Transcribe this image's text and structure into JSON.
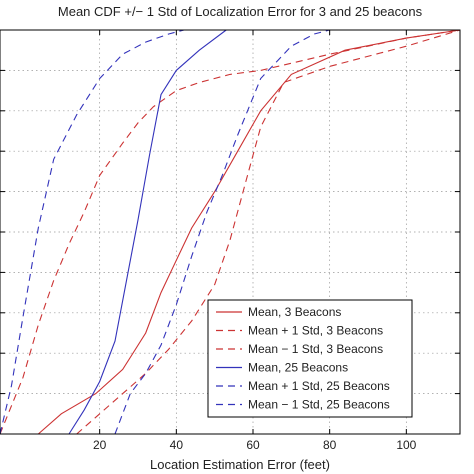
{
  "chart_data": {
    "type": "line",
    "title": "Mean CDF +/− 1 Std of Localization Error for 3 and 25 beacons",
    "xlabel": "Location Estimation Error (feet)",
    "ylabel": "",
    "xlim": [
      -6,
      114
    ],
    "ylim": [
      0,
      1
    ],
    "xticks": [
      20,
      40,
      60,
      80,
      100
    ],
    "yticks": [
      0,
      0.1,
      0.2,
      0.3,
      0.4,
      0.5,
      0.6,
      0.7,
      0.8,
      0.9,
      1.0
    ],
    "grid": true,
    "legend_position": "bottom-right",
    "series": [
      {
        "name": "Mean, 3 Beacons",
        "color": "#cc3333",
        "dash": "solid",
        "x": [
          4,
          10,
          19,
          26,
          32,
          36,
          40,
          44,
          50,
          56,
          62,
          70,
          84,
          100,
          114
        ],
        "y": [
          0,
          0.05,
          0.1,
          0.16,
          0.25,
          0.35,
          0.43,
          0.51,
          0.6,
          0.7,
          0.8,
          0.89,
          0.95,
          0.98,
          1.0
        ]
      },
      {
        "name": "Mean + 1 Std, 3 Beacons",
        "color": "#cc3333",
        "dash": "dashed",
        "x": [
          -6,
          0,
          4,
          8,
          12,
          16,
          20,
          26,
          30,
          34,
          40,
          46,
          54,
          62,
          80,
          100,
          114
        ],
        "y": [
          0,
          0.14,
          0.27,
          0.38,
          0.47,
          0.55,
          0.64,
          0.72,
          0.77,
          0.81,
          0.85,
          0.87,
          0.89,
          0.9,
          0.94,
          0.98,
          1.0
        ]
      },
      {
        "name": "Mean − 1 Std, 3 Beacons",
        "color": "#cc3333",
        "dash": "dashed",
        "x": [
          14,
          20,
          26,
          32,
          38,
          44,
          50,
          54,
          58,
          62,
          68,
          80,
          100,
          114
        ],
        "y": [
          0,
          0.05,
          0.1,
          0.15,
          0.21,
          0.28,
          0.37,
          0.48,
          0.62,
          0.76,
          0.87,
          0.91,
          0.96,
          1.0
        ]
      },
      {
        "name": "Mean, 25 Beacons",
        "color": "#3333bb",
        "dash": "solid",
        "x": [
          12,
          16,
          20,
          24,
          27,
          30,
          33,
          36,
          40,
          46,
          53
        ],
        "y": [
          0,
          0.06,
          0.13,
          0.23,
          0.38,
          0.53,
          0.69,
          0.84,
          0.9,
          0.95,
          1.0
        ]
      },
      {
        "name": "Mean + 1 Std, 25 Beacons",
        "color": "#3333bb",
        "dash": "dashed",
        "x": [
          -6,
          -3,
          0,
          4,
          8,
          14,
          20,
          26,
          32,
          38,
          42
        ],
        "y": [
          0,
          0.12,
          0.29,
          0.51,
          0.68,
          0.79,
          0.88,
          0.94,
          0.97,
          0.99,
          1.0
        ]
      },
      {
        "name": "Mean − 1 Std, 25 Beacons",
        "color": "#3333bb",
        "dash": "dashed",
        "x": [
          24,
          28,
          32,
          36,
          40,
          44,
          48,
          52,
          56,
          62,
          70,
          76,
          80
        ],
        "y": [
          0,
          0.1,
          0.15,
          0.22,
          0.32,
          0.44,
          0.55,
          0.64,
          0.74,
          0.88,
          0.96,
          0.99,
          1.0
        ]
      }
    ]
  }
}
